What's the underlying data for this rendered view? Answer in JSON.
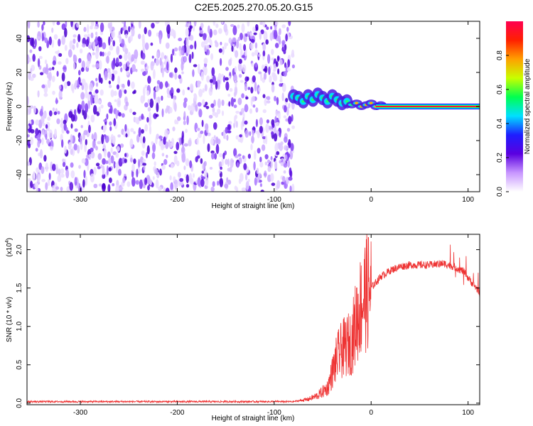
{
  "title": "C2E5.2025.270.05.20.G15",
  "chart_data": [
    {
      "type": "heatmap",
      "xlabel": "Height of straight line (km)",
      "ylabel": "Frequency (Hz)",
      "xlim": [
        -355,
        112
      ],
      "ylim": [
        -50,
        50
      ],
      "xticks": [
        -300,
        -200,
        -100,
        0,
        100
      ],
      "yticks": [
        -40,
        -20,
        0,
        20,
        40
      ],
      "noise_region_x": [
        -355,
        -80
      ],
      "signal_track": [
        {
          "x": -80,
          "y": 6
        },
        {
          "x": -75,
          "y": 5
        },
        {
          "x": -70,
          "y": 3
        },
        {
          "x": -65,
          "y": 6
        },
        {
          "x": -60,
          "y": 4
        },
        {
          "x": -55,
          "y": 7
        },
        {
          "x": -50,
          "y": 5
        },
        {
          "x": -45,
          "y": 3
        },
        {
          "x": -40,
          "y": 6
        },
        {
          "x": -35,
          "y": 4
        },
        {
          "x": -30,
          "y": 2
        },
        {
          "x": -25,
          "y": 3
        },
        {
          "x": -20,
          "y": 1
        },
        {
          "x": -15,
          "y": 2
        },
        {
          "x": -10,
          "y": 0
        },
        {
          "x": -5,
          "y": 1
        },
        {
          "x": 0,
          "y": 2
        },
        {
          "x": 5,
          "y": 0
        },
        {
          "x": 10,
          "y": 1
        }
      ],
      "steady_line": {
        "x_start": 5,
        "x_end": 112,
        "y": 0
      },
      "colorbar": {
        "label": "Normalized spectral amplitude",
        "range": [
          0,
          1
        ],
        "ticks": [
          "0.0",
          "0.2",
          "0.4",
          "0.6",
          "0.8"
        ],
        "colors": [
          "#ffffff",
          "#c896ff",
          "#5a00e0",
          "#1e1eff",
          "#00e0ff",
          "#00ff50",
          "#c8ff00",
          "#ffa000",
          "#ff2000",
          "#ff0050"
        ]
      }
    },
    {
      "type": "line",
      "xlabel": "Height of straight line (km)",
      "ylabel": "SNR (10 * v/v)",
      "scale_label": "(x10",
      "scale_exp": "4",
      "scale_close": ")",
      "xlim": [
        -355,
        112
      ],
      "ylim": [
        -0.02,
        2.2
      ],
      "xticks": [
        -300,
        -200,
        -100,
        0,
        100
      ],
      "yticks": [
        "0.0",
        "0.5",
        "1.0",
        "1.5",
        "2.0"
      ],
      "color": "#ee3333",
      "envelope": [
        {
          "x": -355,
          "y": 0.02
        },
        {
          "x": -80,
          "y": 0.02
        },
        {
          "x": -65,
          "y": 0.05
        },
        {
          "x": -55,
          "y": 0.1
        },
        {
          "x": -45,
          "y": 0.2
        },
        {
          "x": -40,
          "y": 0.4
        },
        {
          "x": -35,
          "y": 0.6
        },
        {
          "x": -30,
          "y": 0.7
        },
        {
          "x": -25,
          "y": 0.75
        },
        {
          "x": -20,
          "y": 0.8
        },
        {
          "x": -15,
          "y": 1.1
        },
        {
          "x": -10,
          "y": 1.3
        },
        {
          "x": -5,
          "y": 1.45
        },
        {
          "x": 0,
          "y": 1.5
        },
        {
          "x": 10,
          "y": 1.65
        },
        {
          "x": 20,
          "y": 1.73
        },
        {
          "x": 30,
          "y": 1.78
        },
        {
          "x": 40,
          "y": 1.8
        },
        {
          "x": 60,
          "y": 1.8
        },
        {
          "x": 75,
          "y": 1.82
        },
        {
          "x": 85,
          "y": 1.78
        },
        {
          "x": 95,
          "y": 1.72
        },
        {
          "x": 105,
          "y": 1.55
        },
        {
          "x": 112,
          "y": 1.45
        }
      ]
    }
  ]
}
